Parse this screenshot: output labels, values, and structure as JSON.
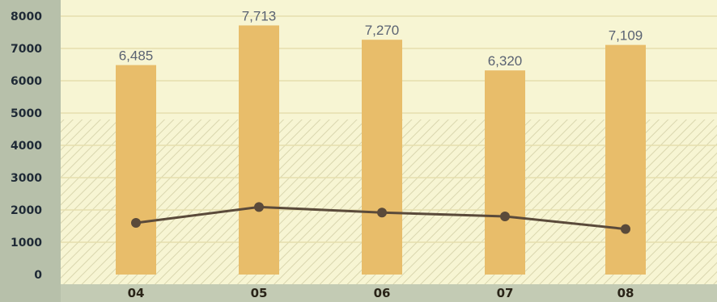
{
  "chart_data": {
    "type": "bar",
    "categories": [
      "04",
      "05",
      "06",
      "07",
      "08"
    ],
    "series": [
      {
        "type": "bar",
        "values": [
          6485,
          7713,
          7270,
          6320,
          7109
        ],
        "value_labels": [
          "6,485",
          "7,713",
          "7,270",
          "6,320",
          "7,109"
        ]
      },
      {
        "type": "line",
        "values": [
          1600,
          2090,
          1920,
          1800,
          1410
        ]
      }
    ],
    "y_ticks": [
      "0",
      "1000",
      "2000",
      "3000",
      "4000",
      "5000",
      "6000",
      "7000",
      "8000"
    ],
    "ylim": [
      0,
      8000
    ],
    "grid": true,
    "colors": {
      "bar": "#e8bd6a",
      "line": "#5a4a3a",
      "plot_background": "#f7f5d3",
      "axis_band": "#c3cbb4",
      "left_panel": "#b7c0aa",
      "gridline": "#e6dfae"
    }
  }
}
